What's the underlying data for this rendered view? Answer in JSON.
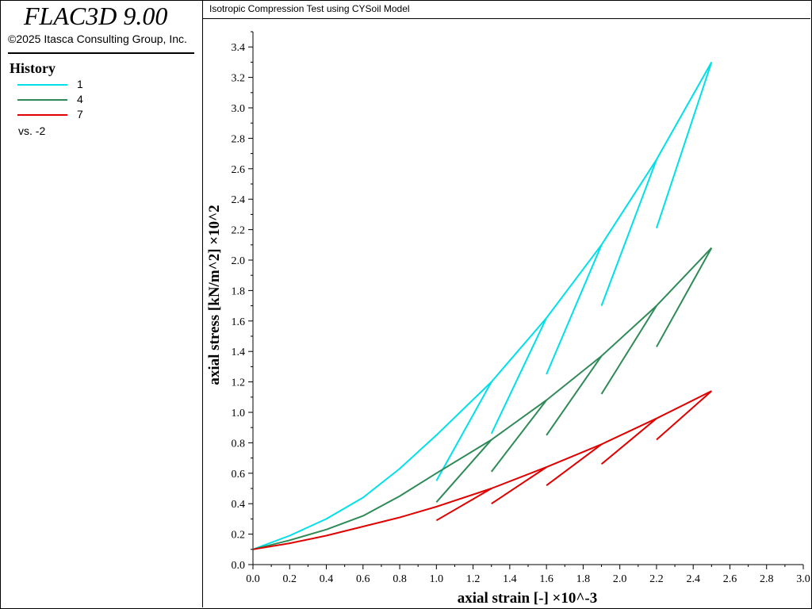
{
  "app": {
    "title": "FLAC3D 9.00",
    "copyright": "©2025 Itasca Consulting Group, Inc."
  },
  "legend": {
    "heading": "History",
    "entries": [
      {
        "label": "1",
        "color": "#00e0e8"
      },
      {
        "label": "4",
        "color": "#2e8b57"
      },
      {
        "label": "7",
        "color": "#e00000"
      }
    ],
    "vs_label": "vs. -2"
  },
  "plot_title": "Isotropic Compression Test using CYSoil Model",
  "chart_data": {
    "type": "line",
    "xlabel": "axial strain [-] ×10^-3",
    "ylabel": "axial stress [kN/m^2] ×10^2",
    "xlim": [
      0.0,
      3.0
    ],
    "ylim": [
      0.0,
      3.5
    ],
    "xticks": [
      "0.0",
      "0.2",
      "0.4",
      "0.6",
      "0.8",
      "1.0",
      "1.2",
      "1.4",
      "1.6",
      "1.8",
      "2.0",
      "2.2",
      "2.4",
      "2.6",
      "2.8",
      "3.0"
    ],
    "yticks": [
      "0.0",
      "0.2",
      "0.4",
      "0.6",
      "0.8",
      "1.0",
      "1.2",
      "1.4",
      "1.6",
      "1.8",
      "2.0",
      "2.2",
      "2.4",
      "2.6",
      "2.8",
      "3.0",
      "3.2",
      "3.4"
    ],
    "series": [
      {
        "name": "1",
        "color": "#00e0e8",
        "main": [
          [
            0.0,
            0.1
          ],
          [
            0.2,
            0.19
          ],
          [
            0.4,
            0.3
          ],
          [
            0.6,
            0.44
          ],
          [
            0.8,
            0.63
          ],
          [
            1.0,
            0.85
          ],
          [
            1.3,
            1.2
          ],
          [
            1.6,
            1.62
          ],
          [
            1.9,
            2.1
          ],
          [
            2.2,
            2.66
          ],
          [
            2.5,
            3.3
          ]
        ],
        "unloads": [
          [
            [
              1.3,
              1.2
            ],
            [
              1.0,
              0.55
            ]
          ],
          [
            [
              1.6,
              1.62
            ],
            [
              1.3,
              0.86
            ]
          ],
          [
            [
              1.9,
              2.1
            ],
            [
              1.6,
              1.25
            ]
          ],
          [
            [
              2.2,
              2.66
            ],
            [
              1.9,
              1.7
            ]
          ],
          [
            [
              2.5,
              3.3
            ],
            [
              2.2,
              2.21
            ]
          ]
        ]
      },
      {
        "name": "4",
        "color": "#2e8b57",
        "main": [
          [
            0.0,
            0.1
          ],
          [
            0.2,
            0.16
          ],
          [
            0.4,
            0.23
          ],
          [
            0.6,
            0.32
          ],
          [
            0.8,
            0.45
          ],
          [
            1.0,
            0.6
          ],
          [
            1.3,
            0.82
          ],
          [
            1.6,
            1.08
          ],
          [
            1.9,
            1.37
          ],
          [
            2.2,
            1.7
          ],
          [
            2.5,
            2.08
          ]
        ],
        "unloads": [
          [
            [
              1.3,
              0.82
            ],
            [
              1.0,
              0.41
            ]
          ],
          [
            [
              1.6,
              1.08
            ],
            [
              1.3,
              0.61
            ]
          ],
          [
            [
              1.9,
              1.37
            ],
            [
              1.6,
              0.85
            ]
          ],
          [
            [
              2.2,
              1.7
            ],
            [
              1.9,
              1.12
            ]
          ],
          [
            [
              2.5,
              2.08
            ],
            [
              2.2,
              1.43
            ]
          ]
        ]
      },
      {
        "name": "7",
        "color": "#e00000",
        "main": [
          [
            0.0,
            0.1
          ],
          [
            0.2,
            0.14
          ],
          [
            0.4,
            0.19
          ],
          [
            0.6,
            0.25
          ],
          [
            0.8,
            0.31
          ],
          [
            1.0,
            0.38
          ],
          [
            1.3,
            0.5
          ],
          [
            1.6,
            0.64
          ],
          [
            1.9,
            0.79
          ],
          [
            2.2,
            0.96
          ],
          [
            2.5,
            1.14
          ]
        ],
        "unloads": [
          [
            [
              1.3,
              0.5
            ],
            [
              1.0,
              0.29
            ]
          ],
          [
            [
              1.6,
              0.64
            ],
            [
              1.3,
              0.4
            ]
          ],
          [
            [
              1.9,
              0.79
            ],
            [
              1.6,
              0.52
            ]
          ],
          [
            [
              2.2,
              0.96
            ],
            [
              1.9,
              0.66
            ]
          ],
          [
            [
              2.5,
              1.14
            ],
            [
              2.2,
              0.82
            ]
          ]
        ]
      }
    ]
  }
}
